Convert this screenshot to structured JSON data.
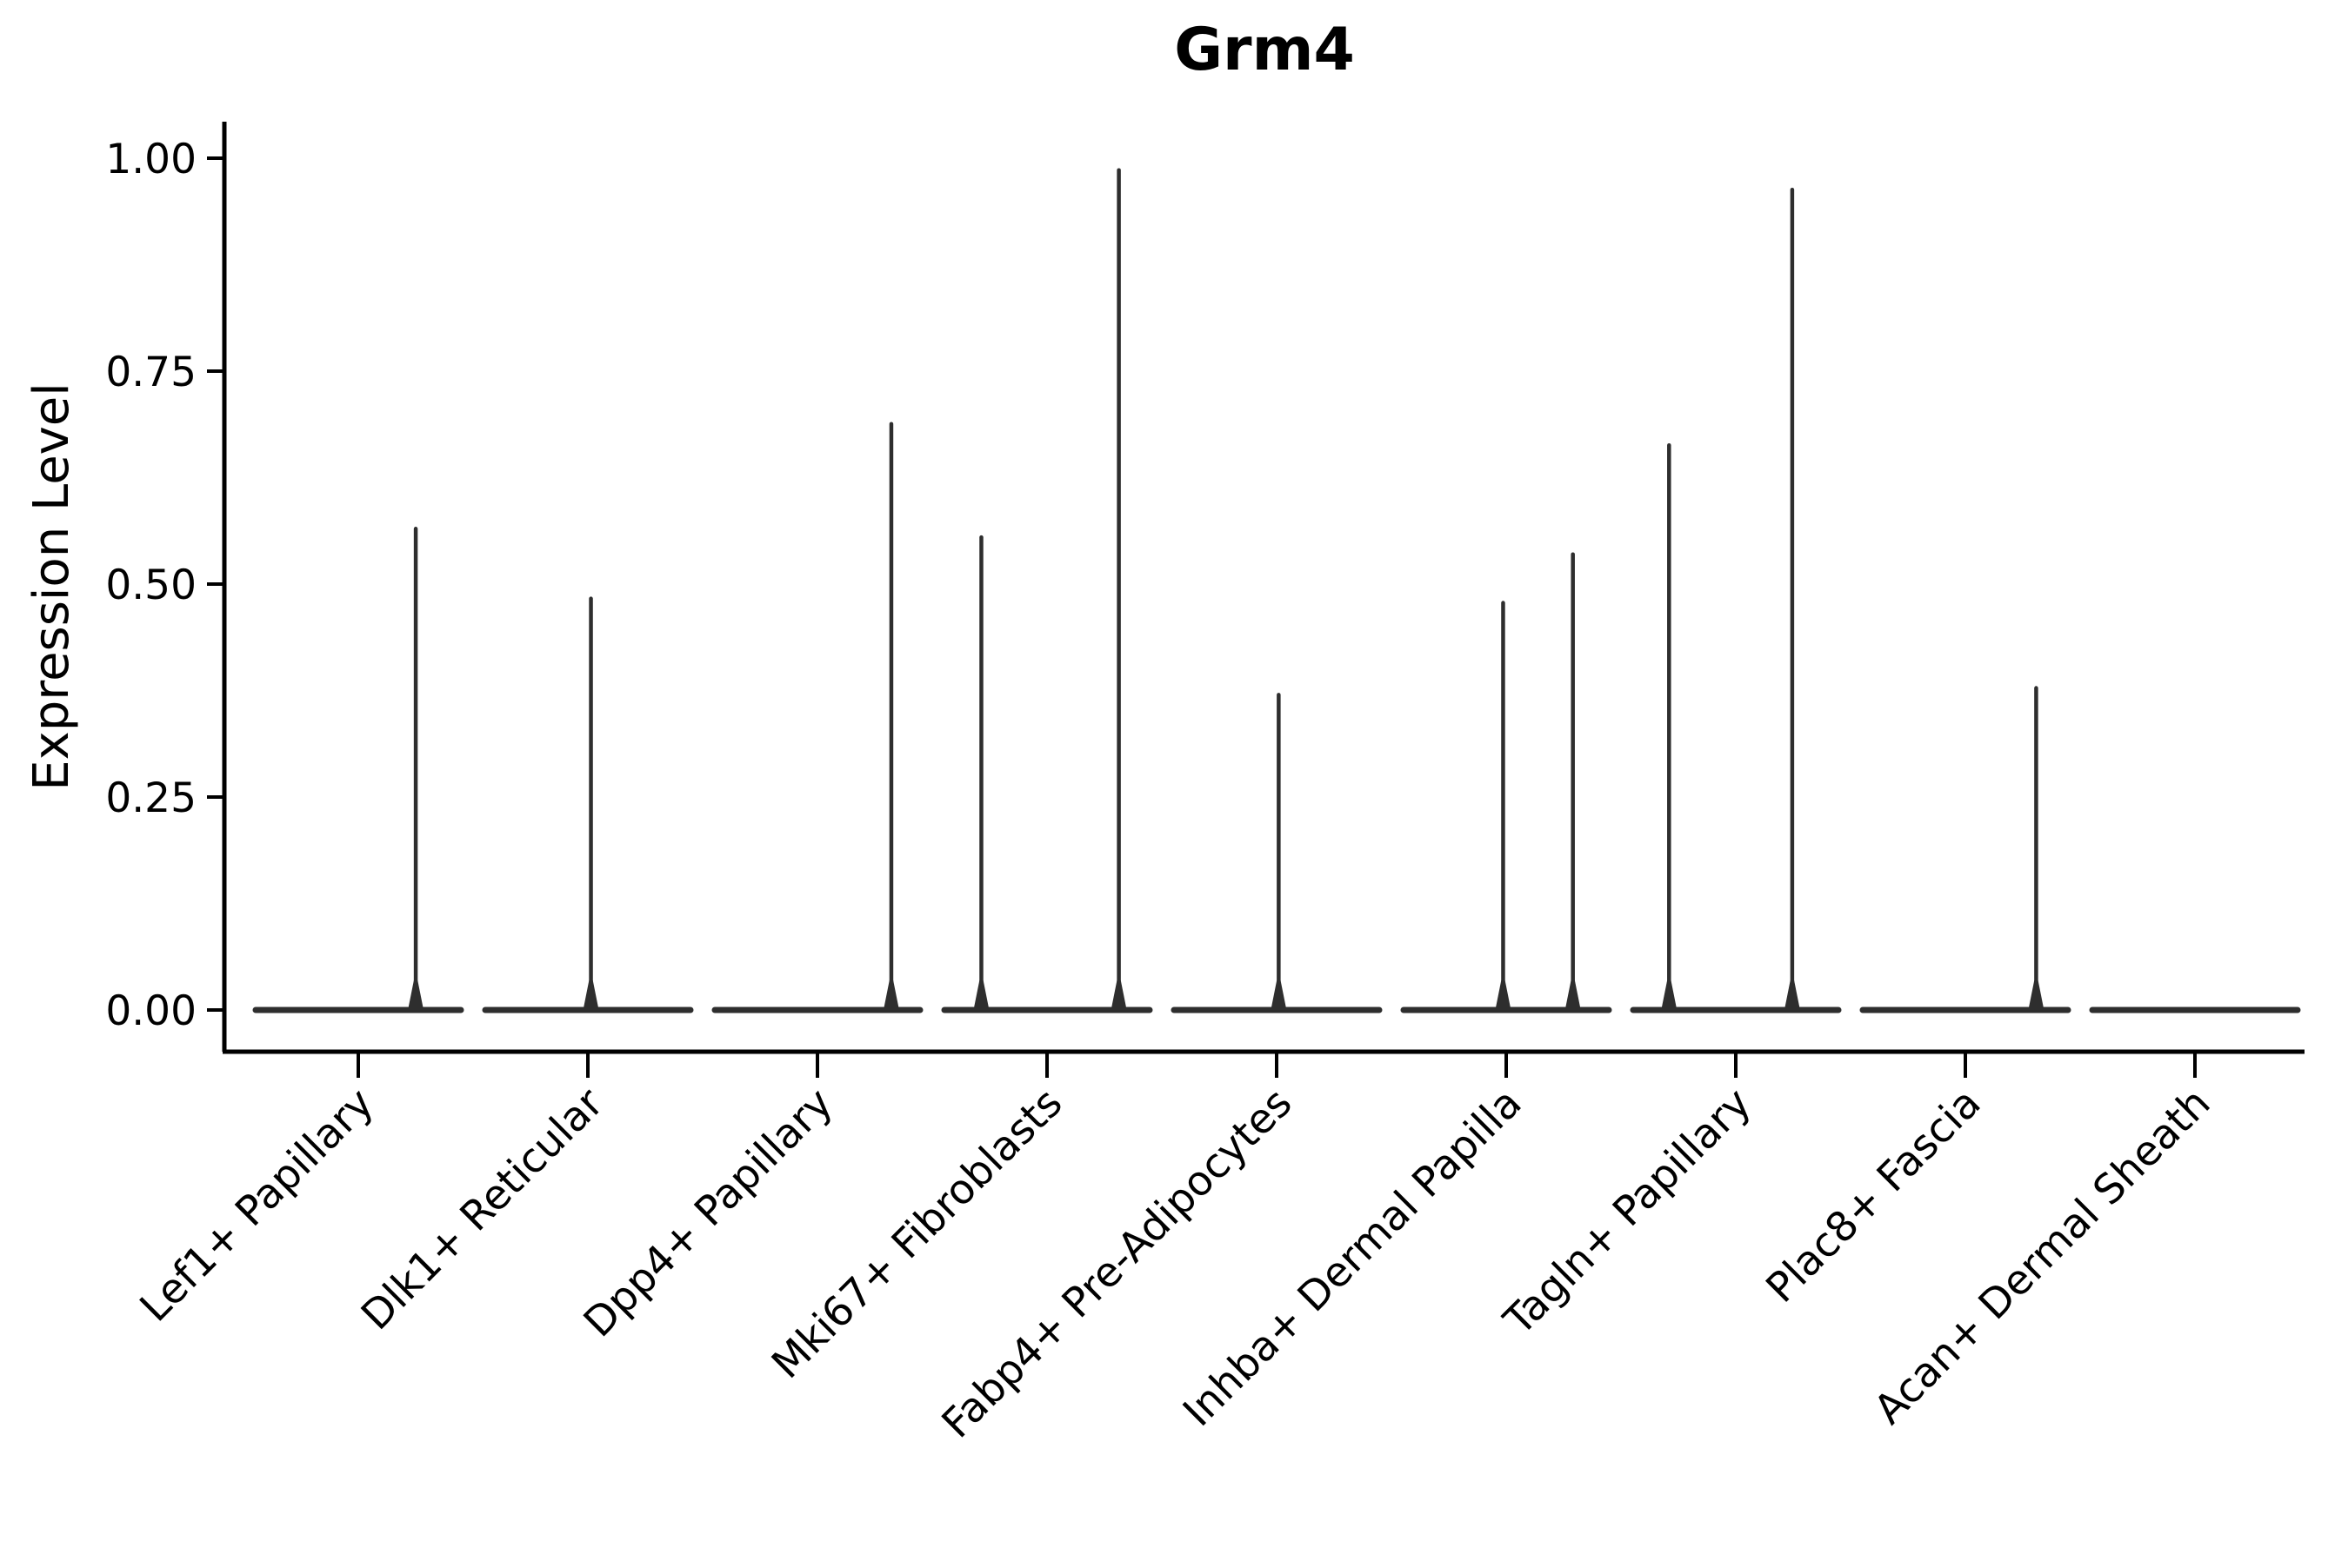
{
  "chart_data": {
    "type": "violin",
    "title": "Grm4",
    "xlabel": "",
    "ylabel": "Expression Level",
    "ylim": [
      -0.05,
      1.04
    ],
    "yticks": [
      0,
      0.25,
      0.5,
      0.75,
      1.0
    ],
    "ytick_labels": [
      "0.00",
      "0.25",
      "0.50",
      "0.75",
      "1.00"
    ],
    "grid": false,
    "legend": null,
    "x_tick_rotation_deg": 45,
    "categories": [
      "Lef1+ Papillary",
      "Dlk1+ Reticular",
      "Dpp4+ Papillary",
      "Mki67+ Fibroblasts",
      "Fabp4+ Pre-Adipocytes",
      "Inhba+ Dermal Papilla",
      "Tagln+ Papillary",
      "Plac8+ Fascia",
      "Acan+ Dermal Sheath"
    ],
    "violins": [
      {
        "category": "Lef1+ Papillary",
        "baseline_value": 0,
        "spikes": [
          {
            "pos": 0.56,
            "value": 0.565
          }
        ]
      },
      {
        "category": "Dlk1+ Reticular",
        "baseline_value": 0,
        "spikes": [
          {
            "pos": 0.03,
            "value": 0.483
          }
        ]
      },
      {
        "category": "Dpp4+ Papillary",
        "baseline_value": 0,
        "spikes": [
          {
            "pos": 0.72,
            "value": 0.688
          }
        ]
      },
      {
        "category": "Mki67+ Fibroblasts",
        "baseline_value": 0,
        "spikes": [
          {
            "pos": -0.64,
            "value": 0.555
          },
          {
            "pos": 0.7,
            "value": 0.986
          }
        ]
      },
      {
        "category": "Fabp4+ Pre-Adipocytes",
        "baseline_value": 0,
        "spikes": [
          {
            "pos": 0.02,
            "value": 0.37
          }
        ]
      },
      {
        "category": "Inhba+ Dermal Papilla",
        "baseline_value": 0,
        "spikes": [
          {
            "pos": -0.03,
            "value": 0.478
          },
          {
            "pos": 0.65,
            "value": 0.535
          }
        ]
      },
      {
        "category": "Tagln+ Papillary",
        "baseline_value": 0,
        "spikes": [
          {
            "pos": -0.65,
            "value": 0.663
          },
          {
            "pos": 0.55,
            "value": 0.963
          }
        ]
      },
      {
        "category": "Plac8+ Fascia",
        "baseline_value": 0,
        "spikes": [
          {
            "pos": 0.69,
            "value": 0.378
          }
        ]
      },
      {
        "category": "Acan+ Dermal Sheath",
        "baseline_value": 0,
        "spikes": []
      }
    ],
    "colors": {
      "background": "#ffffff",
      "text": "#000000",
      "axis": "#000000",
      "violin_stroke": "#2e2e2e"
    }
  }
}
